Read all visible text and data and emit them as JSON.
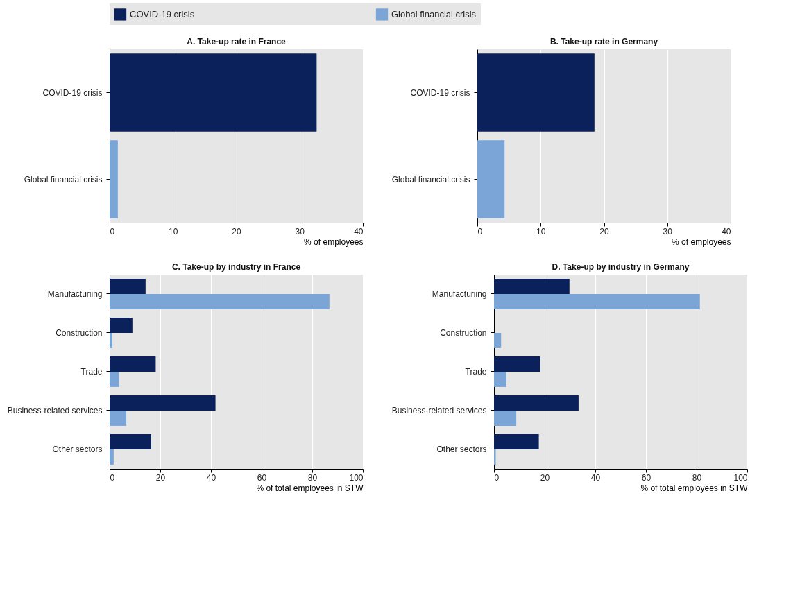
{
  "chart_data": [
    {
      "type": "bar",
      "orientation": "horizontal",
      "title": "A. Take-up rate in France",
      "xlabel": "% of employees",
      "categories": [
        "COVID-19 crisis",
        "Global financial crisis"
      ],
      "values": [
        32.7,
        1.3
      ],
      "colors": [
        "#0b215c",
        "#7ba4d7"
      ],
      "xlim": [
        0,
        40
      ],
      "xticks": [
        0,
        10,
        20,
        30,
        40
      ],
      "grid": "x"
    },
    {
      "type": "bar",
      "orientation": "horizontal",
      "title": "B. Take-up rate in Germany",
      "xlabel": "% of employees",
      "categories": [
        "COVID-19 crisis",
        "Global financial crisis"
      ],
      "values": [
        18.5,
        4.3
      ],
      "colors": [
        "#0b215c",
        "#7ba4d7"
      ],
      "xlim": [
        0,
        40
      ],
      "xticks": [
        0,
        10,
        20,
        30,
        40
      ],
      "grid": "x"
    },
    {
      "type": "bar",
      "orientation": "horizontal",
      "title": "C. Take-up by industry in France",
      "xlabel": "% of  total employees in STW",
      "categories": [
        "Manufacturiing",
        "Construction",
        "Trade",
        "Business-related services",
        "Other sectors"
      ],
      "series": [
        {
          "name": "COVID-19 crisis",
          "color": "#0b215c",
          "values": [
            14.2,
            9.0,
            18.2,
            41.8,
            16.4
          ]
        },
        {
          "name": "Global financial crisis",
          "color": "#7ba4d7",
          "values": [
            86.8,
            1.1,
            3.7,
            6.6,
            1.6
          ]
        }
      ],
      "xlim": [
        0,
        100
      ],
      "xticks": [
        0,
        20,
        40,
        60,
        80,
        100
      ],
      "grid": "x",
      "legend": "top"
    },
    {
      "type": "bar",
      "orientation": "horizontal",
      "title": "D. Take-up by industry in  Germany",
      "xlabel": "% of  total employees in STW",
      "categories": [
        "Manufacturiing",
        "Construction",
        "Trade",
        "Business-related services",
        "Other sectors"
      ],
      "series": [
        {
          "name": "COVID-19 crisis",
          "color": "#0b215c",
          "values": [
            29.8,
            0,
            18.2,
            33.4,
            17.7
          ]
        },
        {
          "name": "Global financial crisis",
          "color": "#7ba4d7",
          "values": [
            81.3,
            2.8,
            4.9,
            8.8,
            0.7
          ]
        }
      ],
      "xlim": [
        0,
        100
      ],
      "xticks": [
        0,
        20,
        40,
        60,
        80,
        100
      ],
      "grid": "x"
    }
  ]
}
